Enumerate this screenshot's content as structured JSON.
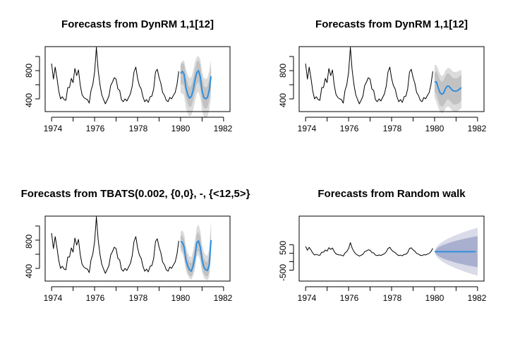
{
  "chart_data": [
    {
      "type": "line",
      "title": "Forecasts from DynRM 1,1[12]",
      "x_ticks": [
        "1974",
        "1976",
        "1978",
        "1980",
        "1982"
      ],
      "y_ticks": [
        "400",
        "800"
      ],
      "xlim": [
        1973.7,
        1982.3
      ],
      "ylim": [
        220,
        1140
      ],
      "series": [
        {
          "role": "history",
          "x_start": 1974.0,
          "x_step": 0.08333,
          "values": [
            900,
            680,
            850,
            690,
            510,
            400,
            430,
            390,
            380,
            560,
            560,
            690,
            630,
            830,
            730,
            810,
            590,
            460,
            420,
            400,
            390,
            340,
            520,
            600,
            780,
            1130,
            810,
            600,
            460,
            390,
            330,
            380,
            440,
            590,
            640,
            700,
            680,
            540,
            520,
            390,
            360,
            400,
            370,
            420,
            470,
            580,
            780,
            850,
            690,
            590,
            540,
            430,
            360,
            390,
            350,
            430,
            440,
            540,
            780,
            820,
            700,
            620,
            490,
            450,
            380,
            360,
            420,
            400,
            450,
            490,
            600,
            790
          ]
        },
        {
          "role": "forecast",
          "color": "#2f8fe0",
          "x_start": 1980.0,
          "x_step": 0.08333,
          "values": [
            760,
            790,
            745,
            560,
            460,
            410,
            435,
            520,
            660,
            770,
            800,
            710,
            510,
            420,
            400,
            420,
            520,
            720
          ]
        },
        {
          "role": "interval-80",
          "color": "#c2c2c2",
          "lower": [
            600,
            620,
            580,
            420,
            330,
            280,
            300,
            380,
            500,
            610,
            640,
            560,
            370,
            280,
            260,
            280,
            380,
            570
          ],
          "upper": [
            880,
            910,
            890,
            730,
            620,
            560,
            590,
            680,
            810,
            920,
            950,
            880,
            680,
            580,
            560,
            580,
            680,
            860
          ]
        },
        {
          "role": "interval-95",
          "color": "#dcdcdc",
          "lower": [
            480,
            480,
            440,
            270,
            190,
            150,
            170,
            240,
            360,
            470,
            500,
            420,
            230,
            150,
            130,
            150,
            240,
            430
          ],
          "upper": [
            900,
            940,
            940,
            820,
            740,
            690,
            710,
            800,
            920,
            990,
            1010,
            960,
            780,
            700,
            680,
            700,
            800,
            960
          ]
        }
      ]
    },
    {
      "type": "line",
      "title": "Forecasts from DynRM 1,1[12]",
      "x_ticks": [
        "1974",
        "1976",
        "1978",
        "1980",
        "1982"
      ],
      "y_ticks": [
        "400",
        "800"
      ],
      "xlim": [
        1973.7,
        1982.3
      ],
      "ylim": [
        220,
        1140
      ],
      "series": [
        {
          "role": "history",
          "x_start": 1974.0,
          "x_step": 0.08333,
          "values": [
            900,
            680,
            850,
            690,
            510,
            400,
            430,
            390,
            380,
            560,
            560,
            690,
            630,
            830,
            730,
            810,
            590,
            460,
            420,
            400,
            390,
            340,
            520,
            600,
            780,
            1130,
            810,
            600,
            460,
            390,
            330,
            380,
            440,
            590,
            640,
            700,
            680,
            540,
            520,
            390,
            360,
            400,
            370,
            420,
            470,
            580,
            780,
            850,
            690,
            590,
            540,
            430,
            360,
            390,
            350,
            430,
            440,
            540,
            780,
            820,
            700,
            620,
            490,
            450,
            380,
            360,
            420,
            400,
            450,
            490,
            600,
            790
          ]
        },
        {
          "role": "forecast",
          "color": "#2f8fe0",
          "x_start": 1980.0,
          "x_step": 0.08333,
          "values": [
            640,
            640,
            560,
            490,
            465,
            480,
            540,
            580,
            580,
            550,
            520,
            510,
            510,
            520,
            540,
            560
          ]
        },
        {
          "role": "interval-80",
          "color": "#c2c2c2",
          "lower": [
            500,
            460,
            380,
            310,
            290,
            300,
            350,
            390,
            390,
            360,
            330,
            320,
            320,
            330,
            350,
            380
          ],
          "upper": [
            760,
            800,
            740,
            670,
            640,
            660,
            720,
            760,
            760,
            730,
            700,
            690,
            690,
            700,
            720,
            740
          ]
        },
        {
          "role": "interval-95",
          "color": "#dcdcdc",
          "lower": [
            420,
            360,
            280,
            220,
            200,
            210,
            260,
            290,
            290,
            260,
            230,
            220,
            220,
            230,
            250,
            270
          ],
          "upper": [
            880,
            880,
            820,
            760,
            720,
            740,
            800,
            830,
            840,
            820,
            790,
            780,
            780,
            790,
            800,
            810
          ]
        }
      ]
    },
    {
      "type": "line",
      "title": "Forecasts from TBATS(0.002, {0,0}, -, {<12,5>}",
      "x_ticks": [
        "1974",
        "1976",
        "1978",
        "1980",
        "1982"
      ],
      "y_ticks": [
        "400",
        "800"
      ],
      "xlim": [
        1973.7,
        1982.3
      ],
      "ylim": [
        220,
        1140
      ],
      "series": [
        {
          "role": "history",
          "x_start": 1974.0,
          "x_step": 0.08333,
          "values": [
            900,
            680,
            850,
            690,
            510,
            400,
            430,
            390,
            380,
            560,
            560,
            690,
            630,
            830,
            730,
            810,
            590,
            460,
            420,
            400,
            390,
            340,
            520,
            600,
            780,
            1130,
            810,
            600,
            460,
            390,
            330,
            380,
            440,
            590,
            640,
            700,
            680,
            540,
            520,
            390,
            360,
            400,
            370,
            420,
            470,
            580,
            780,
            850,
            690,
            590,
            540,
            430,
            360,
            390,
            350,
            430,
            440,
            540,
            780,
            820,
            700,
            620,
            490,
            450,
            380,
            360,
            420,
            400,
            450,
            490,
            600,
            790
          ]
        },
        {
          "role": "forecast",
          "color": "#2f8fe0",
          "x_start": 1980.0,
          "x_step": 0.08333,
          "values": [
            780,
            770,
            700,
            520,
            430,
            380,
            360,
            440,
            560,
            760,
            790,
            700,
            520,
            420,
            380,
            370,
            450,
            800
          ]
        },
        {
          "role": "interval-80",
          "color": "#c2c2c2",
          "lower": [
            690,
            660,
            580,
            420,
            340,
            300,
            280,
            340,
            440,
            620,
            650,
            560,
            400,
            320,
            290,
            280,
            340,
            640
          ],
          "upper": [
            860,
            870,
            810,
            640,
            540,
            490,
            470,
            560,
            690,
            880,
            920,
            840,
            650,
            540,
            500,
            490,
            580,
            960
          ]
        },
        {
          "role": "interval-95",
          "color": "#dcdcdc",
          "lower": [
            640,
            610,
            520,
            370,
            300,
            260,
            240,
            290,
            380,
            560,
            590,
            500,
            350,
            270,
            240,
            230,
            280,
            560
          ],
          "upper": [
            920,
            940,
            890,
            720,
            620,
            570,
            560,
            650,
            790,
            980,
            1020,
            940,
            740,
            630,
            590,
            580,
            680,
            1080
          ]
        }
      ]
    },
    {
      "type": "line",
      "title": "Forecasts from Random walk",
      "x_ticks": [
        "1974",
        "1976",
        "1978",
        "1980",
        "1982"
      ],
      "y_ticks": [
        "-500",
        "500"
      ],
      "xlim": [
        1973.7,
        1982.3
      ],
      "ylim": [
        -1150,
        2700
      ],
      "series": [
        {
          "role": "history",
          "x_start": 1974.0,
          "x_step": 0.08333,
          "values": [
            900,
            680,
            850,
            690,
            510,
            400,
            430,
            390,
            380,
            560,
            560,
            690,
            630,
            830,
            730,
            810,
            590,
            460,
            420,
            400,
            390,
            340,
            520,
            600,
            780,
            1130,
            810,
            600,
            460,
            390,
            330,
            380,
            440,
            590,
            640,
            700,
            680,
            540,
            520,
            390,
            360,
            400,
            370,
            420,
            470,
            580,
            780,
            850,
            690,
            590,
            540,
            430,
            360,
            390,
            350,
            430,
            440,
            540,
            780,
            820,
            700,
            620,
            490,
            450,
            380,
            360,
            420,
            400,
            450,
            490,
            600,
            790
          ]
        },
        {
          "role": "forecast",
          "color": "#2f8fe0",
          "x_start": 1980.0,
          "x_step": 0.08333,
          "values": [
            590,
            590,
            590,
            590,
            590,
            590,
            590,
            590,
            590,
            590,
            590,
            590,
            590,
            590,
            590,
            590,
            590,
            590,
            590,
            590,
            590,
            590,
            590,
            590
          ]
        },
        {
          "role": "interval-80",
          "color": "#a9afcf",
          "lower": [
            590,
            420,
            340,
            280,
            230,
            180,
            140,
            100,
            70,
            30,
            0,
            -30,
            -60,
            -90,
            -110,
            -140,
            -160,
            -190,
            -210,
            -230,
            -250,
            -270,
            -290,
            -310,
            -330
          ],
          "upper": [
            590,
            760,
            840,
            900,
            950,
            1000,
            1040,
            1080,
            1110,
            1150,
            1180,
            1210,
            1240,
            1270,
            1290,
            1320,
            1340,
            1370,
            1390,
            1410,
            1430,
            1450,
            1470,
            1490,
            1510
          ]
        },
        {
          "role": "interval-95",
          "color": "#d9dbe8",
          "lower": [
            590,
            320,
            200,
            110,
            30,
            -40,
            -100,
            -160,
            -210,
            -260,
            -310,
            -360,
            -400,
            -440,
            -480,
            -520,
            -560,
            -600,
            -630,
            -670,
            -700,
            -740,
            -770,
            -800,
            -830
          ],
          "upper": [
            590,
            860,
            980,
            1070,
            1150,
            1220,
            1280,
            1340,
            1390,
            1440,
            1490,
            1540,
            1580,
            1620,
            1660,
            1700,
            1740,
            1780,
            1810,
            1850,
            1880,
            1920,
            1950,
            1980,
            2010
          ]
        }
      ]
    }
  ]
}
